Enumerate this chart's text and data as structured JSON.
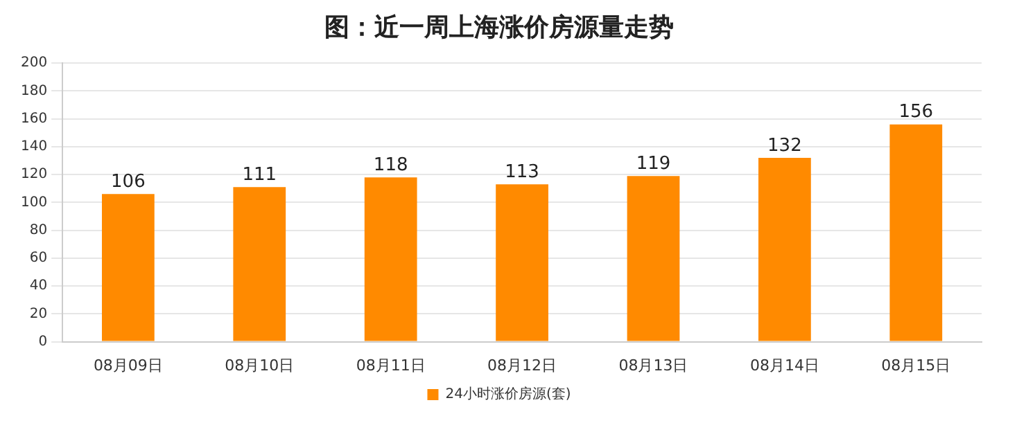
{
  "chart_data": {
    "type": "bar",
    "title": "图：近一周上海涨价房源量走势",
    "categories": [
      "08月09日",
      "08月10日",
      "08月11日",
      "08月12日",
      "08月13日",
      "08月14日",
      "08月15日"
    ],
    "series": [
      {
        "name": "24小时涨价房源(套)",
        "color": "#ff8a00",
        "values": [
          106,
          111,
          118,
          113,
          119,
          132,
          156
        ]
      }
    ],
    "ylim": [
      0,
      200
    ],
    "yticks": [
      0,
      20,
      40,
      60,
      80,
      100,
      120,
      140,
      160,
      180,
      200
    ],
    "grid": "y",
    "legend": "bottom",
    "data_labels": true
  }
}
